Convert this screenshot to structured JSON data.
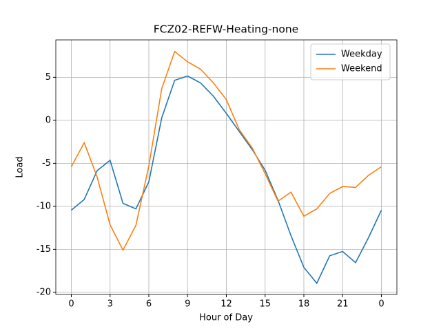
{
  "chart_data": {
    "type": "line",
    "title": "FCZ02-REFW-Heating-none",
    "x_label": "Hour of Day",
    "y_label": "Load",
    "x": [
      0,
      1,
      2,
      3,
      4,
      5,
      6,
      7,
      8,
      9,
      10,
      11,
      12,
      13,
      14,
      15,
      16,
      17,
      18,
      19,
      20,
      21,
      22,
      23,
      24
    ],
    "series": [
      {
        "name": "Weekday",
        "color": "#1f77b4",
        "values": [
          -10.45,
          -9.2,
          -5.85,
          -4.65,
          -9.65,
          -10.3,
          -7.15,
          0.3,
          4.65,
          5.15,
          4.35,
          2.8,
          0.8,
          -1.3,
          -3.4,
          -5.8,
          -9.3,
          -13.4,
          -17.1,
          -18.95,
          -15.75,
          -15.25,
          -16.55,
          -13.65,
          -10.45
        ]
      },
      {
        "name": "Weekend",
        "color": "#ff7f0e",
        "values": [
          -5.4,
          -2.6,
          -6.6,
          -12.15,
          -15.1,
          -12.2,
          -5.3,
          3.7,
          8.0,
          6.8,
          5.95,
          4.35,
          2.4,
          -1.1,
          -3.2,
          -6.2,
          -9.4,
          -8.35,
          -11.15,
          -10.3,
          -8.5,
          -7.7,
          -7.8,
          -6.4,
          -5.4
        ]
      }
    ],
    "xlim": [
      -1.2,
      25.2
    ],
    "ylim": [
      -20.25,
      9.35
    ],
    "xticks": [
      0,
      3,
      6,
      9,
      12,
      15,
      18,
      21,
      {
        "value": 24,
        "label": "0"
      }
    ],
    "yticks": [
      -20,
      -15,
      -10,
      -5,
      0,
      5
    ],
    "grid": true,
    "legend": "upper-right"
  }
}
